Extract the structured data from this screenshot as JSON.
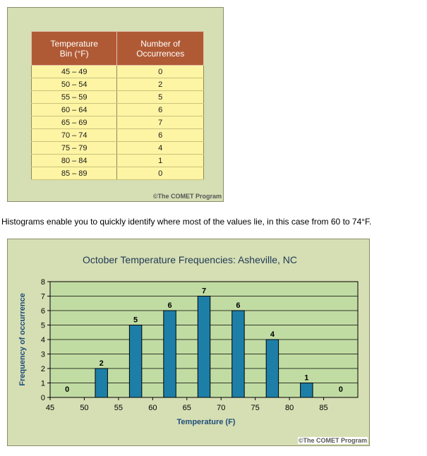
{
  "table": {
    "headers": [
      "Temperature\nBin (°F)",
      "Number of\nOccurrences"
    ],
    "rows": [
      [
        "45 – 49",
        "0"
      ],
      [
        "50 – 54",
        "2"
      ],
      [
        "55 – 59",
        "5"
      ],
      [
        "60 – 64",
        "6"
      ],
      [
        "65 – 69",
        "7"
      ],
      [
        "70 – 74",
        "6"
      ],
      [
        "75 – 79",
        "4"
      ],
      [
        "80 – 84",
        "1"
      ],
      [
        "85 – 89",
        "0"
      ]
    ],
    "credit": "©The COMET Program"
  },
  "caption": "Histograms enable you to quickly identify where most of the values lie, in this case from 60 to 74°F.",
  "chart_credit": "©The COMET Program",
  "colors": {
    "panel": "#d6deb4",
    "plot": "#c1dca3",
    "bar": "#1d7fa8",
    "header": "#b05a35",
    "cell": "#fdf4a4"
  },
  "chart_data": {
    "type": "bar",
    "title": "October Temperature Frequencies: Asheville, NC",
    "xlabel": "Temperature (F)",
    "ylabel": "Frequency of occurrence",
    "bin_centers": [
      47.5,
      52.5,
      57.5,
      62.5,
      67.5,
      72.5,
      77.5,
      82.5,
      87.5
    ],
    "values": [
      0,
      2,
      5,
      6,
      7,
      6,
      4,
      1,
      0
    ],
    "xlim": [
      45,
      90
    ],
    "ylim": [
      0,
      8
    ],
    "xticks": [
      45,
      50,
      55,
      60,
      65,
      70,
      75,
      80,
      85
    ],
    "yticks": [
      0,
      1,
      2,
      3,
      4,
      5,
      6,
      7,
      8
    ],
    "grid": true
  }
}
